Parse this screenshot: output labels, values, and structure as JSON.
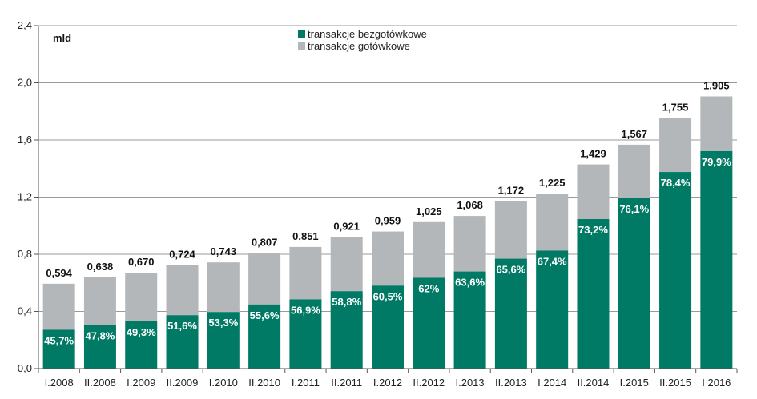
{
  "chart_data": {
    "type": "bar",
    "stacked": true,
    "unit": "mld",
    "ylim": [
      0,
      2.4
    ],
    "yticks": [
      "0,0",
      "0,4",
      "0,8",
      "1,2",
      "1,6",
      "2,0",
      "2,4"
    ],
    "grid": true,
    "legend_position": "top-center",
    "categories": [
      "I.2008",
      "II.2008",
      "I.2009",
      "II.2009",
      "I.2010",
      "II.2010",
      "I.2011",
      "II.2011",
      "I.2012",
      "II.2012",
      "I.2013",
      "II.2013",
      "I.2014",
      "II.2014",
      "I.2015",
      "II.2015",
      "I 2016"
    ],
    "totals": [
      0.594,
      0.638,
      0.67,
      0.724,
      0.743,
      0.807,
      0.851,
      0.921,
      0.959,
      1.025,
      1.068,
      1.172,
      1.225,
      1.429,
      1.567,
      1.755,
      1.905
    ],
    "total_labels": [
      "0,594",
      "0,638",
      "0,670",
      "0,724",
      "0,743",
      "0,807",
      "0,851",
      "0,921",
      "0,959",
      "1,025",
      "1,068",
      "1,172",
      "1,225",
      "1,429",
      "1,567",
      "1,755",
      "1.905"
    ],
    "cashless_share": [
      45.7,
      47.8,
      49.3,
      51.6,
      53.3,
      55.6,
      56.9,
      58.8,
      60.5,
      62,
      63.6,
      65.6,
      67.4,
      73.2,
      76.1,
      78.4,
      79.9
    ],
    "share_labels": [
      "45,7%",
      "47,8%",
      "49,3%",
      "51,6%",
      "53,3%",
      "55,6%",
      "56,9%",
      "58,8%",
      "60,5%",
      "62%",
      "63,6%",
      "65,6%",
      "67,4%",
      "73,2%",
      "76,1%",
      "78,4%",
      "79,9%"
    ],
    "series": [
      {
        "name": "transakcje bezgotówkowe",
        "color": "#007A64"
      },
      {
        "name": "transakcje gotówkowe",
        "color": "#B4B7BA"
      }
    ]
  }
}
